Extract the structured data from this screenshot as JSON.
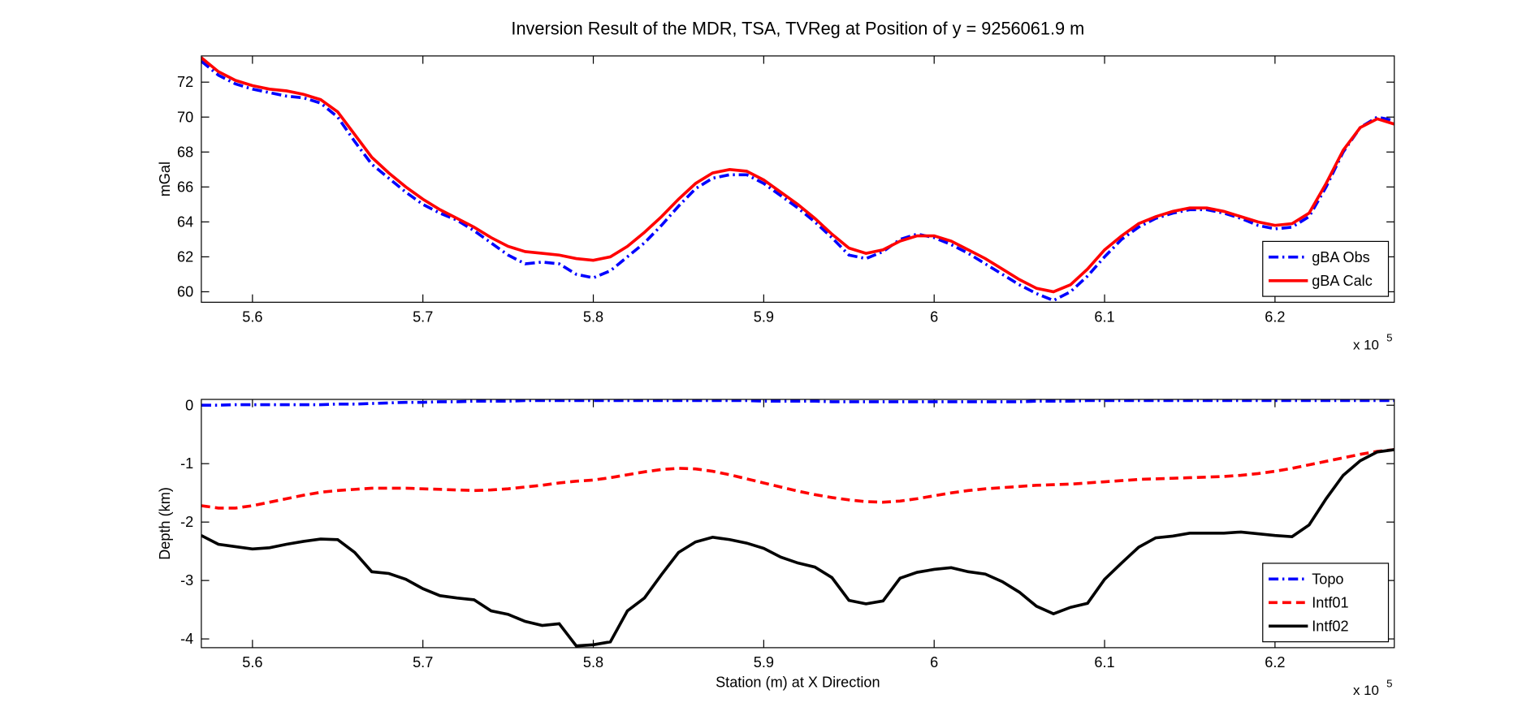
{
  "chart_data": [
    {
      "type": "line",
      "title": "Inversion Result of the MDR, TSA, TVReg at Position of y = 9256061.9 m",
      "ylabel": "mGal",
      "x_multiplier": {
        "base": "x 10",
        "exponent": "5"
      },
      "x": [
        5.57,
        5.58,
        5.59,
        5.6,
        5.61,
        5.62,
        5.63,
        5.64,
        5.65,
        5.66,
        5.67,
        5.68,
        5.69,
        5.7,
        5.71,
        5.72,
        5.73,
        5.74,
        5.75,
        5.76,
        5.77,
        5.78,
        5.79,
        5.8,
        5.81,
        5.82,
        5.83,
        5.84,
        5.85,
        5.86,
        5.87,
        5.88,
        5.89,
        5.9,
        5.91,
        5.92,
        5.93,
        5.94,
        5.95,
        5.96,
        5.97,
        5.98,
        5.99,
        6.0,
        6.01,
        6.02,
        6.03,
        6.04,
        6.05,
        6.06,
        6.07,
        6.08,
        6.09,
        6.1,
        6.11,
        6.12,
        6.13,
        6.14,
        6.15,
        6.16,
        6.17,
        6.18,
        6.19,
        6.2,
        6.21,
        6.22,
        6.23,
        6.24,
        6.25,
        6.26,
        6.27
      ],
      "series": [
        {
          "name": "gBA Obs",
          "color": "#0000ff",
          "dash": "dashdot",
          "values": [
            73.2,
            72.4,
            71.9,
            71.6,
            71.4,
            71.2,
            71.1,
            70.8,
            70.0,
            68.6,
            67.3,
            66.5,
            65.7,
            65.0,
            64.5,
            64.1,
            63.5,
            62.8,
            62.1,
            61.6,
            61.7,
            61.6,
            61.0,
            60.8,
            61.2,
            62.0,
            62.8,
            63.8,
            64.9,
            65.9,
            66.5,
            66.7,
            66.7,
            66.2,
            65.5,
            64.8,
            64.0,
            63.1,
            62.1,
            61.9,
            62.3,
            63.0,
            63.3,
            63.1,
            62.7,
            62.2,
            61.6,
            61.0,
            60.4,
            59.9,
            59.5,
            60.0,
            60.9,
            62.0,
            63.0,
            63.7,
            64.2,
            64.5,
            64.7,
            64.7,
            64.5,
            64.2,
            63.8,
            63.6,
            63.7,
            64.3,
            66.0,
            68.0,
            69.4,
            70.0,
            69.8
          ]
        },
        {
          "name": "gBA Calc",
          "color": "#ff0000",
          "dash": "solid",
          "values": [
            73.4,
            72.6,
            72.1,
            71.8,
            71.6,
            71.5,
            71.3,
            71.0,
            70.3,
            69.0,
            67.7,
            66.8,
            66.0,
            65.3,
            64.7,
            64.2,
            63.7,
            63.1,
            62.6,
            62.3,
            62.2,
            62.1,
            61.9,
            61.8,
            62.0,
            62.6,
            63.4,
            64.3,
            65.3,
            66.2,
            66.8,
            67.0,
            66.9,
            66.4,
            65.7,
            65.0,
            64.2,
            63.3,
            62.5,
            62.2,
            62.4,
            62.9,
            63.2,
            63.2,
            62.9,
            62.4,
            61.9,
            61.3,
            60.7,
            60.2,
            60.0,
            60.4,
            61.3,
            62.4,
            63.2,
            63.9,
            64.3,
            64.6,
            64.8,
            64.8,
            64.6,
            64.3,
            64.0,
            63.8,
            63.9,
            64.5,
            66.2,
            68.1,
            69.4,
            69.9,
            69.6
          ]
        }
      ],
      "xlim": [
        5.57,
        6.27
      ],
      "xticks": [
        5.6,
        5.7,
        5.8,
        5.9,
        6,
        6.1,
        6.2
      ],
      "ylim": [
        59.4,
        73.5
      ],
      "yticks": [
        60,
        62,
        64,
        66,
        68,
        70,
        72
      ],
      "grid": false,
      "legend": "lower right"
    },
    {
      "type": "line",
      "ylabel": "Depth (km)",
      "xlabel": "Station (m) at X Direction",
      "x_multiplier": {
        "base": "x 10",
        "exponent": "5"
      },
      "x": [
        5.57,
        5.58,
        5.59,
        5.6,
        5.61,
        5.62,
        5.63,
        5.64,
        5.65,
        5.66,
        5.67,
        5.68,
        5.69,
        5.7,
        5.71,
        5.72,
        5.73,
        5.74,
        5.75,
        5.76,
        5.77,
        5.78,
        5.79,
        5.8,
        5.81,
        5.82,
        5.83,
        5.84,
        5.85,
        5.86,
        5.87,
        5.88,
        5.89,
        5.9,
        5.91,
        5.92,
        5.93,
        5.94,
        5.95,
        5.96,
        5.97,
        5.98,
        5.99,
        6.0,
        6.01,
        6.02,
        6.03,
        6.04,
        6.05,
        6.06,
        6.07,
        6.08,
        6.09,
        6.1,
        6.11,
        6.12,
        6.13,
        6.14,
        6.15,
        6.16,
        6.17,
        6.18,
        6.19,
        6.2,
        6.21,
        6.22,
        6.23,
        6.24,
        6.25,
        6.26,
        6.27
      ],
      "series": [
        {
          "name": "Topo",
          "color": "#0000ff",
          "dash": "dashdot",
          "values": [
            0.0,
            0.0,
            0.01,
            0.01,
            0.01,
            0.01,
            0.01,
            0.01,
            0.02,
            0.02,
            0.03,
            0.04,
            0.05,
            0.05,
            0.06,
            0.06,
            0.07,
            0.07,
            0.07,
            0.08,
            0.08,
            0.08,
            0.08,
            0.08,
            0.08,
            0.08,
            0.08,
            0.08,
            0.08,
            0.08,
            0.08,
            0.08,
            0.08,
            0.07,
            0.07,
            0.07,
            0.07,
            0.06,
            0.06,
            0.06,
            0.06,
            0.06,
            0.06,
            0.06,
            0.06,
            0.06,
            0.06,
            0.06,
            0.06,
            0.07,
            0.07,
            0.07,
            0.08,
            0.08,
            0.08,
            0.08,
            0.08,
            0.08,
            0.08,
            0.08,
            0.08,
            0.08,
            0.08,
            0.08,
            0.08,
            0.08,
            0.08,
            0.08,
            0.08,
            0.08,
            0.08
          ]
        },
        {
          "name": "Intf01",
          "color": "#ff0000",
          "dash": "dashed",
          "values": [
            -1.72,
            -1.76,
            -1.76,
            -1.72,
            -1.66,
            -1.6,
            -1.54,
            -1.49,
            -1.46,
            -1.44,
            -1.42,
            -1.42,
            -1.42,
            -1.43,
            -1.44,
            -1.45,
            -1.46,
            -1.45,
            -1.43,
            -1.4,
            -1.37,
            -1.33,
            -1.3,
            -1.28,
            -1.24,
            -1.19,
            -1.14,
            -1.1,
            -1.08,
            -1.09,
            -1.13,
            -1.19,
            -1.26,
            -1.33,
            -1.4,
            -1.47,
            -1.53,
            -1.58,
            -1.62,
            -1.65,
            -1.66,
            -1.64,
            -1.6,
            -1.55,
            -1.5,
            -1.46,
            -1.43,
            -1.41,
            -1.39,
            -1.37,
            -1.36,
            -1.35,
            -1.33,
            -1.31,
            -1.29,
            -1.27,
            -1.26,
            -1.25,
            -1.24,
            -1.23,
            -1.22,
            -1.2,
            -1.17,
            -1.13,
            -1.08,
            -1.02,
            -0.96,
            -0.9,
            -0.84,
            -0.79,
            -0.76
          ]
        },
        {
          "name": "Intf02",
          "color": "#000000",
          "dash": "solid",
          "values": [
            -2.23,
            -2.38,
            -2.42,
            -2.46,
            -2.44,
            -2.38,
            -2.33,
            -2.29,
            -2.3,
            -2.52,
            -2.85,
            -2.88,
            -2.98,
            -3.14,
            -3.26,
            -3.3,
            -3.33,
            -3.52,
            -3.58,
            -3.7,
            -3.77,
            -3.74,
            -4.12,
            -4.1,
            -4.05,
            -3.52,
            -3.3,
            -2.9,
            -2.52,
            -2.34,
            -2.26,
            -2.3,
            -2.36,
            -2.45,
            -2.6,
            -2.7,
            -2.77,
            -2.95,
            -3.34,
            -3.4,
            -3.35,
            -2.96,
            -2.86,
            -2.81,
            -2.78,
            -2.85,
            -2.89,
            -3.02,
            -3.2,
            -3.44,
            -3.57,
            -3.46,
            -3.39,
            -2.98,
            -2.7,
            -2.43,
            -2.27,
            -2.24,
            -2.19,
            -2.19,
            -2.19,
            -2.17,
            -2.2,
            -2.23,
            -2.25,
            -2.05,
            -1.6,
            -1.2,
            -0.95,
            -0.8,
            -0.76
          ]
        }
      ],
      "xlim": [
        5.57,
        6.27
      ],
      "xticks": [
        5.6,
        5.7,
        5.8,
        5.9,
        6,
        6.1,
        6.2
      ],
      "ylim": [
        -4.15,
        0.1
      ],
      "yticks": [
        -4,
        -3,
        -2,
        -1,
        0
      ],
      "grid": false,
      "legend": "lower right"
    }
  ]
}
